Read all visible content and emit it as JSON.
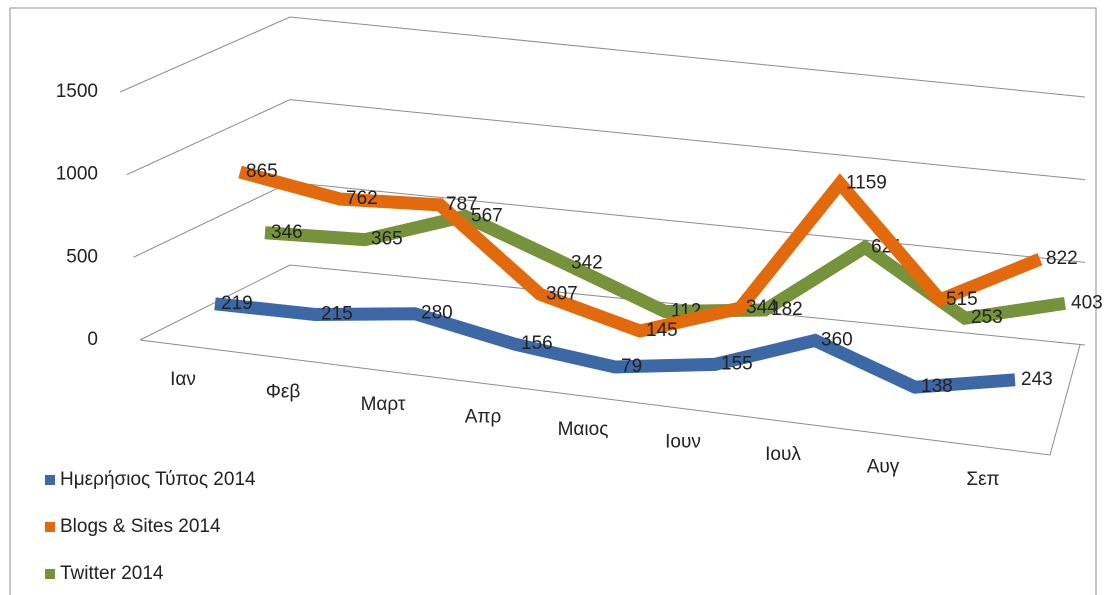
{
  "chart_data": {
    "type": "line",
    "categories": [
      "Ιαν",
      "Φεβ",
      "Μαρτ",
      "Απρ",
      "Μαιος",
      "Ιουν",
      "Ιουλ",
      "Αυγ",
      "Σεπ"
    ],
    "series": [
      {
        "name": "Ημερήσιος Τύπος 2014",
        "color": "#3c68a6",
        "values": [
          219,
          215,
          280,
          156,
          79,
          155,
          360,
          138,
          243
        ]
      },
      {
        "name": "Blogs & Sites 2014",
        "color": "#e2690c",
        "values": [
          865,
          762,
          787,
          307,
          145,
          344,
          1159,
          515,
          822
        ]
      },
      {
        "name": "Twitter 2014",
        "color": "#76923b",
        "values": [
          346,
          365,
          567,
          342,
          112,
          182,
          621,
          253,
          403
        ]
      }
    ],
    "ylim": [
      0,
      1500
    ],
    "yticks": [
      0,
      500,
      1000,
      1500
    ],
    "grid": true,
    "legend": "bottom-left"
  }
}
